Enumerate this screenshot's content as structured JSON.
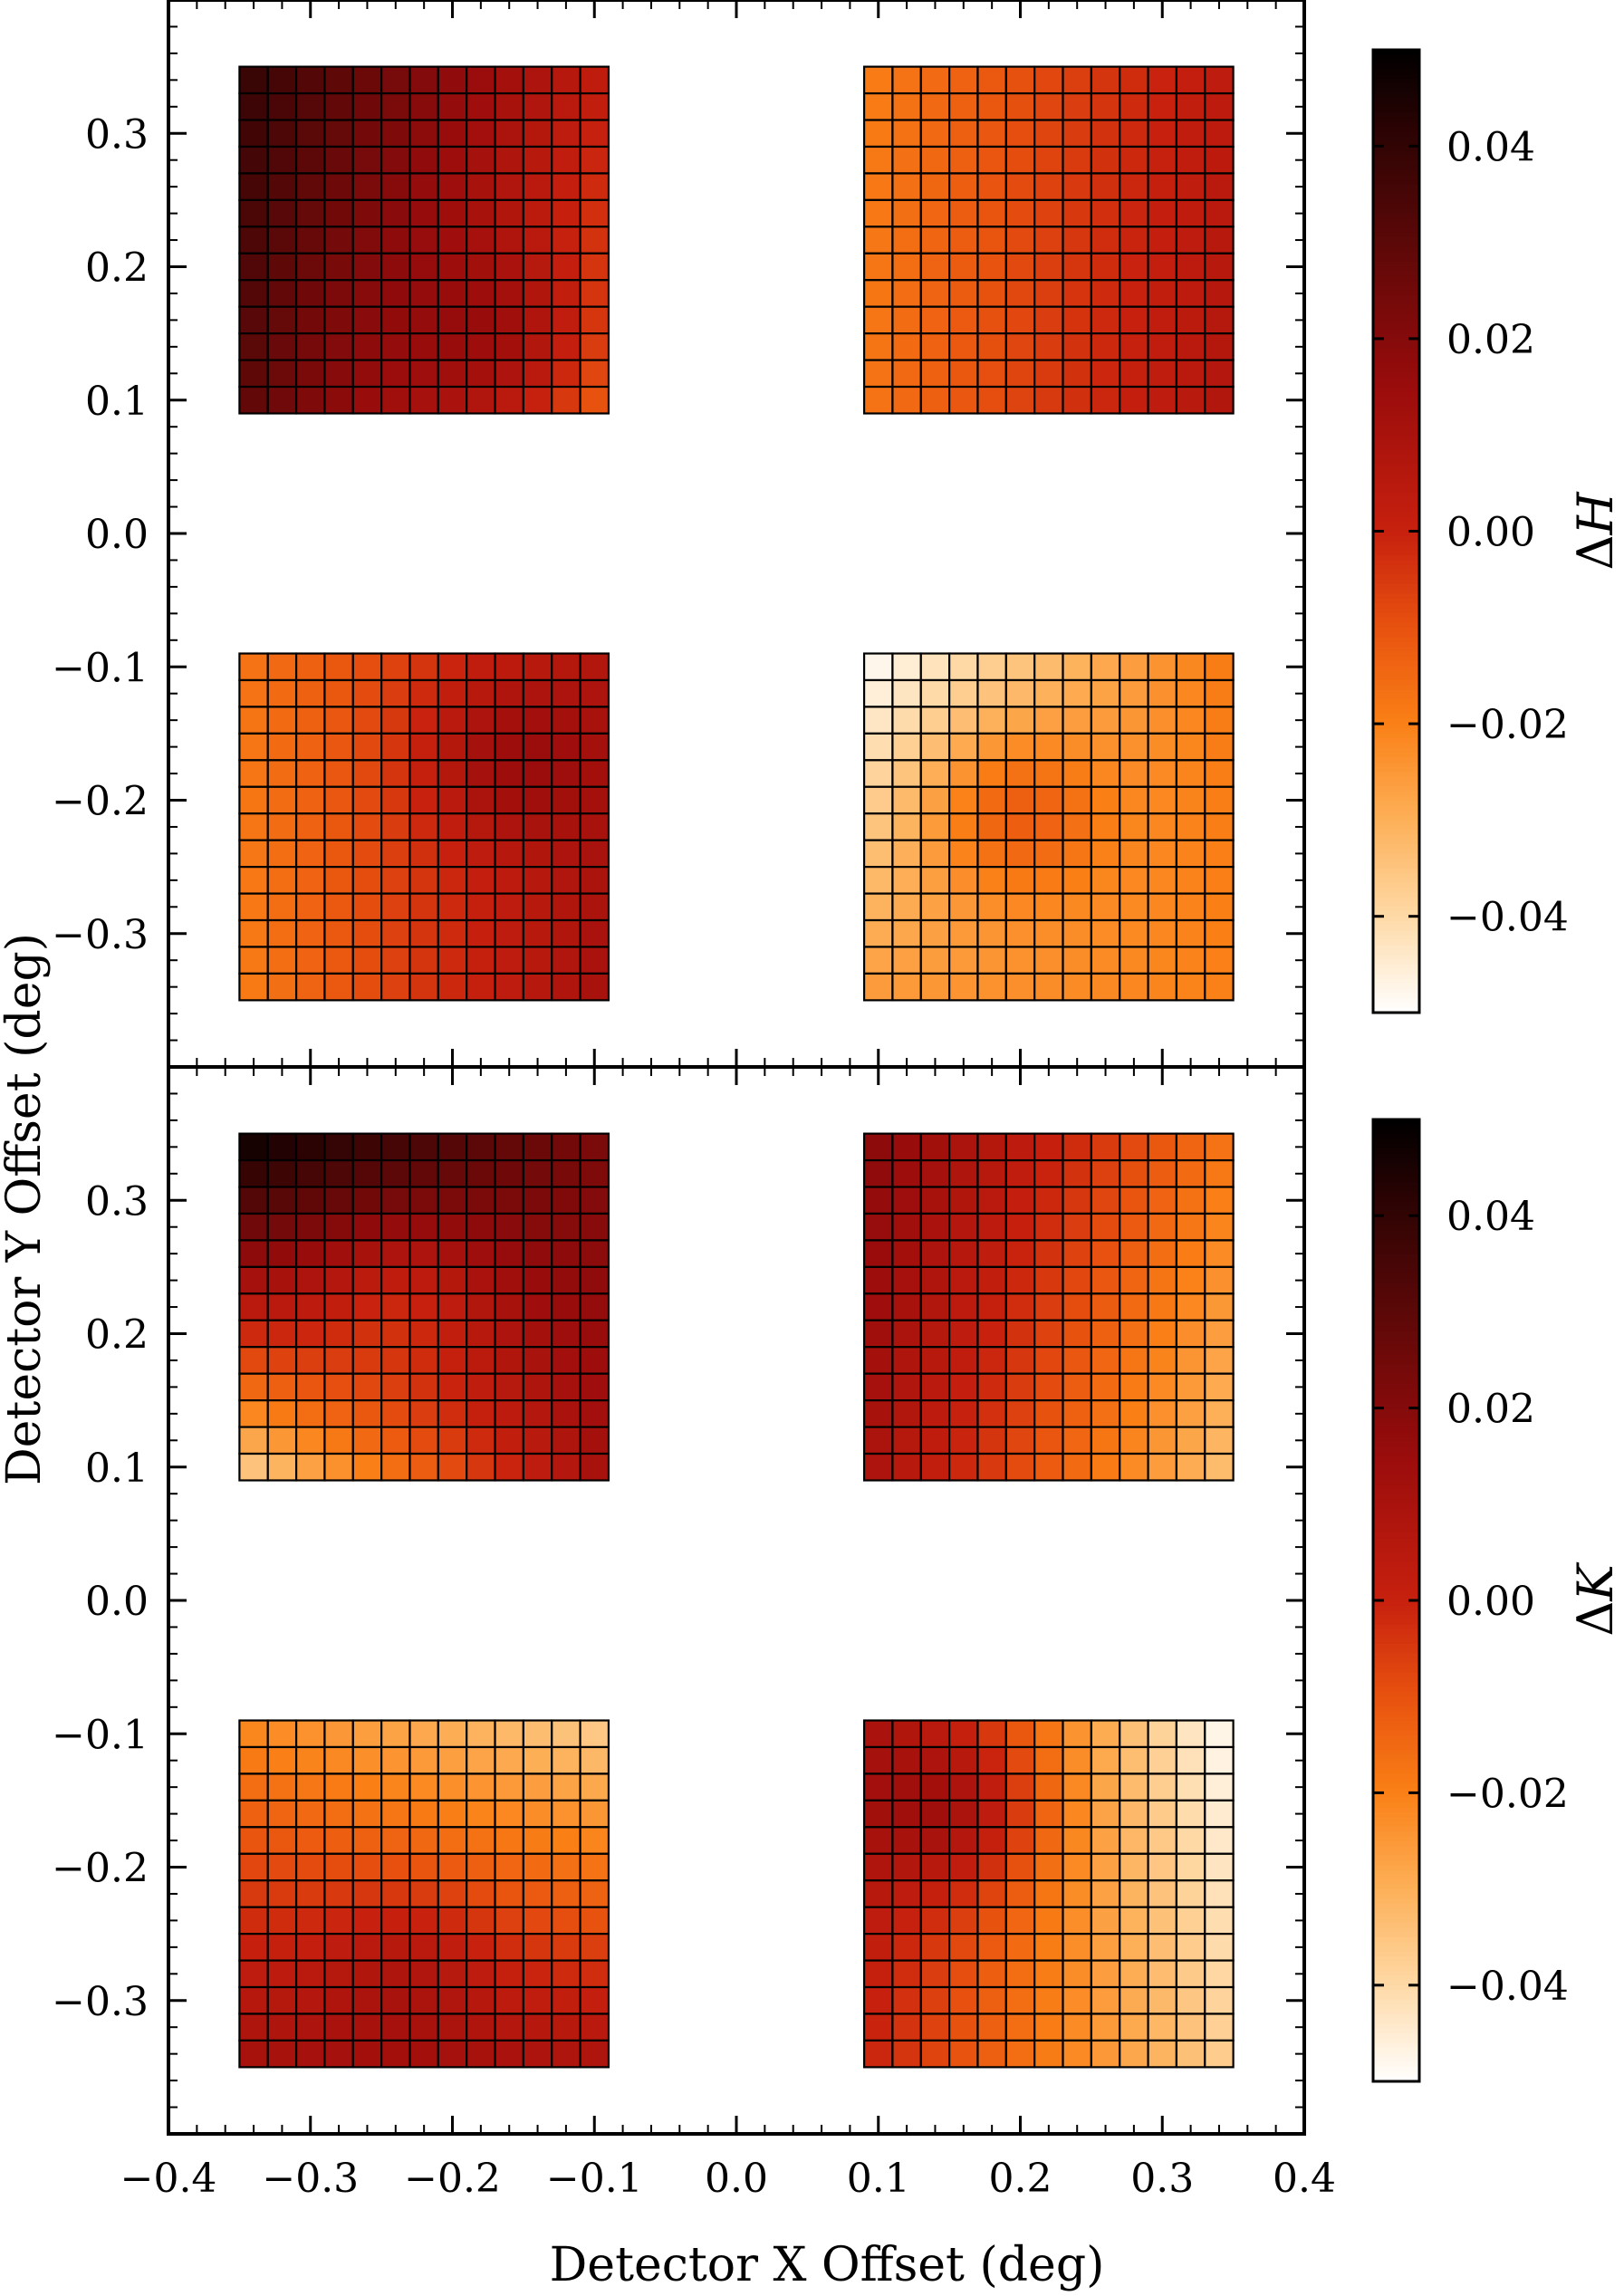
{
  "chart_data": {
    "type": "heatmap",
    "xlabel": "Detector X Offset (deg)",
    "ylabel": "Detector Y Offset (deg)",
    "xlim": [
      -0.4,
      0.4
    ],
    "ylim": [
      -0.4,
      0.4
    ],
    "x_ticks": [
      -0.4,
      -0.3,
      -0.2,
      -0.1,
      0.0,
      0.1,
      0.2,
      0.3,
      0.4
    ],
    "x_tick_labels": [
      "−0.4",
      "−0.3",
      "−0.2",
      "−0.1",
      "0.0",
      "0.1",
      "0.2",
      "0.3",
      "0.4"
    ],
    "y_ticks": [
      -0.3,
      -0.2,
      -0.1,
      0.0,
      0.1,
      0.2,
      0.3
    ],
    "y_tick_labels": [
      "−0.3",
      "−0.2",
      "−0.1",
      "0.0",
      "0.1",
      "0.2",
      "0.3"
    ],
    "grid_cells_per_side": 13,
    "quadrant_extents": {
      "x": [
        [
          -0.35,
          -0.09
        ],
        [
          0.09,
          0.35
        ]
      ],
      "y": [
        [
          0.09,
          0.35
        ],
        [
          -0.35,
          -0.09
        ]
      ]
    },
    "colorbar": {
      "vmin": -0.05,
      "vmax": 0.05,
      "ticks": [
        -0.04,
        -0.02,
        0.0,
        0.02,
        0.04
      ],
      "tick_labels": [
        "−0.04",
        "−0.02",
        "0.00",
        "0.02",
        "0.04"
      ]
    },
    "colormap_stops": [
      [
        0.0,
        "#ffffff"
      ],
      [
        0.1,
        "#fed9a6"
      ],
      [
        0.2,
        "#fdb058"
      ],
      [
        0.3,
        "#fa8016"
      ],
      [
        0.4,
        "#e8520f"
      ],
      [
        0.5,
        "#c7200e"
      ],
      [
        0.65,
        "#9a0c0c"
      ],
      [
        0.8,
        "#5c0808"
      ],
      [
        0.92,
        "#2a0303"
      ],
      [
        1.0,
        "#000000"
      ]
    ],
    "panels": [
      {
        "name": "delta-H",
        "colorbar_label": "ΔH",
        "quadrants": {
          "top_left": {
            "v00": 0.03,
            "v10": -0.015,
            "v01": 0.04,
            "v11": 0.002,
            "bump": 0.012,
            "bx": 0.72,
            "by": 0.22
          },
          "top_right": {
            "v00": -0.018,
            "v10": 0.008,
            "v01": -0.02,
            "v11": 0.004,
            "bump": 0.0,
            "bx": 0.5,
            "by": 0.5
          },
          "bottom_left": {
            "v00": -0.02,
            "v10": 0.012,
            "v01": -0.018,
            "v11": 0.006,
            "bump": 0.014,
            "bx": 0.72,
            "by": 0.7
          },
          "bottom_right": {
            "v00": -0.025,
            "v10": -0.02,
            "v01": -0.05,
            "v11": -0.018,
            "bump": 0.018,
            "bx": 0.4,
            "by": 0.55
          }
        }
      },
      {
        "name": "delta-K",
        "colorbar_label": "ΔK",
        "quadrants": {
          "top_left": {
            "v00": -0.04,
            "v10": 0.012,
            "v01": 0.05,
            "v11": 0.022,
            "bump": -0.012,
            "bx": 0.45,
            "by": 0.55
          },
          "top_right": {
            "v00": 0.01,
            "v10": -0.035,
            "v01": 0.02,
            "v11": -0.018,
            "bump": 0.0,
            "bx": 0.5,
            "by": 0.5
          },
          "bottom_left": {
            "v00": 0.012,
            "v10": 0.01,
            "v01": -0.022,
            "v11": -0.038,
            "bump": 0.008,
            "bx": 0.45,
            "by": 0.3
          },
          "bottom_right": {
            "v00": 0.0,
            "v10": -0.038,
            "v01": 0.008,
            "v11": -0.05,
            "bump": 0.018,
            "bx": 0.25,
            "by": 0.75
          }
        }
      }
    ]
  }
}
